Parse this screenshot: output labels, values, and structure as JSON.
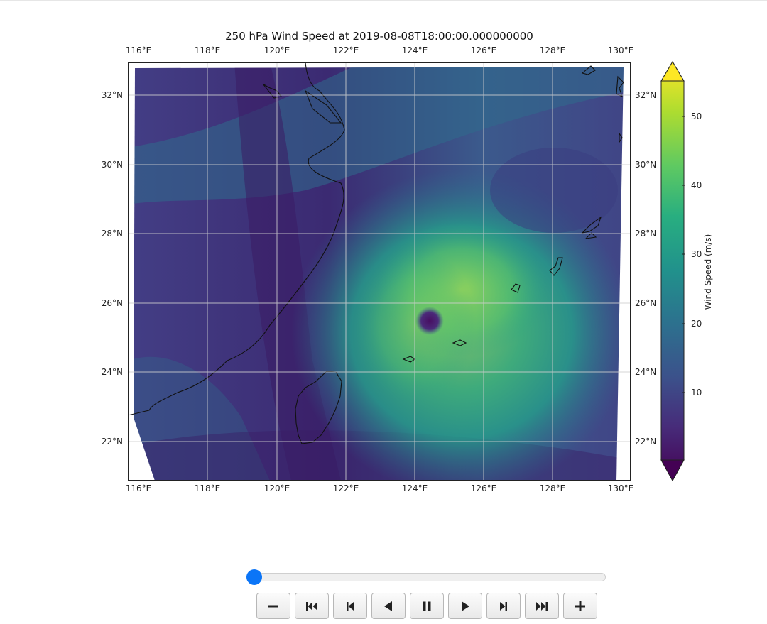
{
  "figure": {
    "title": "250 hPa Wind Speed at 2019-08-08T18:00:00.000000000",
    "lon_ticks": [
      "116°E",
      "118°E",
      "120°E",
      "122°E",
      "124°E",
      "126°E",
      "128°E",
      "130°E"
    ],
    "lat_ticks": [
      "32°N",
      "30°N",
      "28°N",
      "26°N",
      "24°N",
      "22°N"
    ],
    "colorbar": {
      "label": "Wind Speed (m/s)",
      "ticks": [
        "50",
        "40",
        "30",
        "20",
        "10"
      ],
      "colormap": "viridis",
      "extend": "both"
    }
  },
  "chart_data": {
    "type": "heatmap",
    "title": "250 hPa Wind Speed at 2019-08-08T18:00:00.000000000",
    "xlim": [
      115.7,
      130.3
    ],
    "ylim": [
      20.9,
      33.0
    ],
    "colorbar_range": [
      1,
      55
    ],
    "colorbar_label": "Wind Speed (m/s)",
    "grid": true,
    "features": {
      "typhoon_eye": {
        "lon": 124.5,
        "lat": 25.5,
        "value": 3
      },
      "peak_wind_ring": {
        "center_lon": 125.0,
        "center_lat": 26.0,
        "value": 40
      }
    }
  },
  "player": {
    "slider_value": 0,
    "buttons": [
      {
        "name": "decrease-speed-button",
        "icon": "minus-icon"
      },
      {
        "name": "first-frame-button",
        "icon": "skip-to-start-icon"
      },
      {
        "name": "previous-frame-button",
        "icon": "step-back-icon"
      },
      {
        "name": "play-reverse-button",
        "icon": "play-reverse-icon"
      },
      {
        "name": "pause-button",
        "icon": "pause-icon"
      },
      {
        "name": "play-button",
        "icon": "play-icon"
      },
      {
        "name": "next-frame-button",
        "icon": "step-forward-icon"
      },
      {
        "name": "last-frame-button",
        "icon": "skip-to-end-icon"
      },
      {
        "name": "increase-speed-button",
        "icon": "plus-icon"
      }
    ]
  }
}
